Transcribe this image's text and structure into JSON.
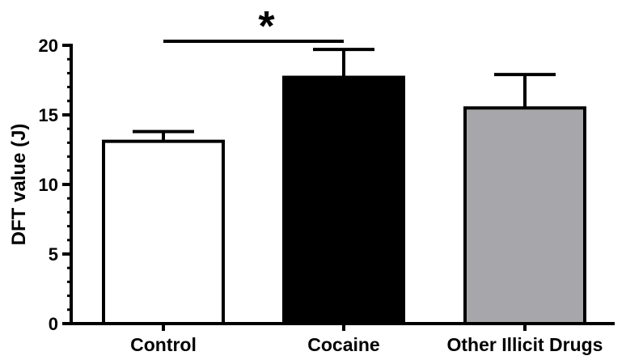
{
  "chart_data": {
    "type": "bar",
    "title": "",
    "xlabel": "",
    "ylabel": "DFT value (J)",
    "ylim": [
      0,
      20
    ],
    "yticks": [
      0,
      5,
      10,
      15,
      20
    ],
    "categories": [
      "Control",
      "Cocaine",
      "Other Illicit Drugs"
    ],
    "values": [
      13.1,
      17.7,
      15.5
    ],
    "error_upper": [
      0.7,
      2.0,
      2.4
    ],
    "bar_colors": [
      "#ffffff",
      "#000000",
      "#a7a6aa"
    ],
    "significance": {
      "from": "Control",
      "to": "Cocaine",
      "label": "*"
    },
    "grid": false,
    "legend": "none"
  }
}
